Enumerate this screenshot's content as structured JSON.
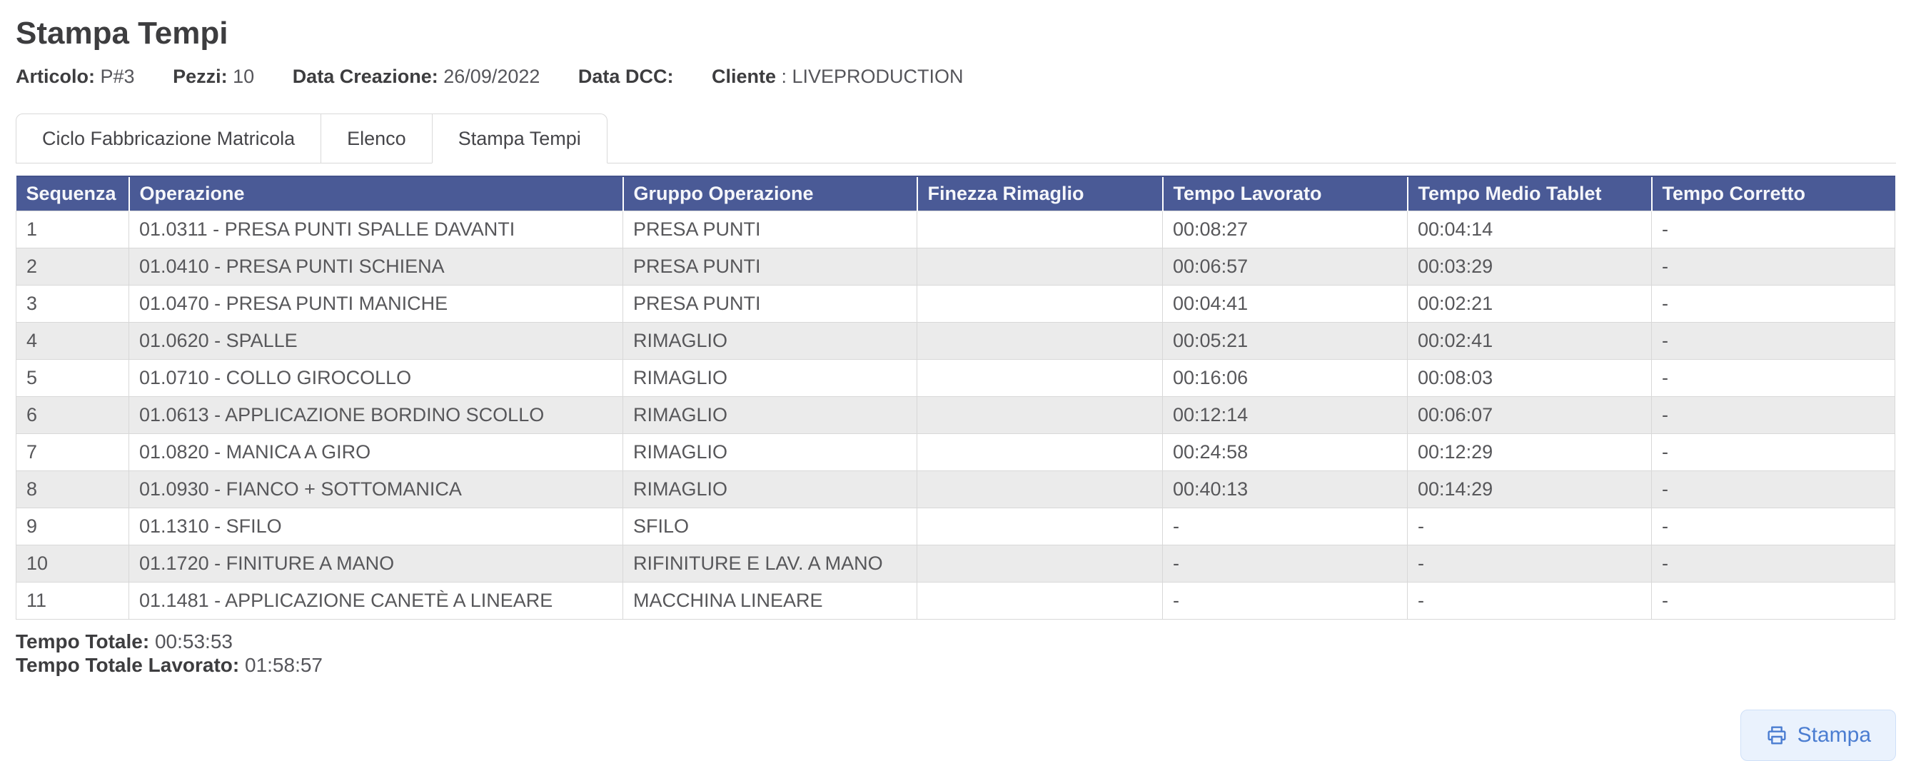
{
  "page": {
    "title": "Stampa Tempi"
  },
  "info": [
    {
      "label": "Articolo:",
      "value": "P#3"
    },
    {
      "label": "Pezzi:",
      "value": "10"
    },
    {
      "label": "Data Creazione:",
      "value": "26/09/2022"
    },
    {
      "label": "Data DCC:",
      "value": ""
    },
    {
      "label": "Cliente",
      "value": ": LIVEPRODUCTION"
    }
  ],
  "tabs": [
    {
      "label": "Ciclo Fabbricazione Matricola",
      "active": false
    },
    {
      "label": "Elenco",
      "active": false
    },
    {
      "label": "Stampa Tempi",
      "active": true
    }
  ],
  "table": {
    "columns": [
      "Sequenza",
      "Operazione",
      "Gruppo Operazione",
      "Finezza Rimaglio",
      "Tempo Lavorato",
      "Tempo Medio Tablet",
      "Tempo Corretto"
    ],
    "rows": [
      [
        "1",
        "01.0311 - PRESA PUNTI SPALLE DAVANTI",
        "PRESA PUNTI",
        "",
        "00:08:27",
        "00:04:14",
        "-"
      ],
      [
        "2",
        "01.0410 - PRESA PUNTI SCHIENA",
        "PRESA PUNTI",
        "",
        "00:06:57",
        "00:03:29",
        "-"
      ],
      [
        "3",
        "01.0470 - PRESA PUNTI MANICHE",
        "PRESA PUNTI",
        "",
        "00:04:41",
        "00:02:21",
        "-"
      ],
      [
        "4",
        "01.0620 - SPALLE",
        "RIMAGLIO",
        "",
        "00:05:21",
        "00:02:41",
        "-"
      ],
      [
        "5",
        "01.0710 - COLLO GIROCOLLO",
        "RIMAGLIO",
        "",
        "00:16:06",
        "00:08:03",
        "-"
      ],
      [
        "6",
        "01.0613 - APPLICAZIONE BORDINO SCOLLO",
        "RIMAGLIO",
        "",
        "00:12:14",
        "00:06:07",
        "-"
      ],
      [
        "7",
        "01.0820 - MANICA A GIRO",
        "RIMAGLIO",
        "",
        "00:24:58",
        "00:12:29",
        "-"
      ],
      [
        "8",
        "01.0930 - FIANCO + SOTTOMANICA",
        "RIMAGLIO",
        "",
        "00:40:13",
        "00:14:29",
        "-"
      ],
      [
        "9",
        "01.1310 - SFILO",
        "SFILO",
        "",
        "-",
        "-",
        "-"
      ],
      [
        "10",
        "01.1720 - FINITURE A MANO",
        "RIFINITURE E LAV. A MANO",
        "",
        "-",
        "-",
        "-"
      ],
      [
        "11",
        "01.1481 - APPLICAZIONE CANETÈ A LINEARE",
        "MACCHINA LINEARE",
        "",
        "-",
        "-",
        "-"
      ]
    ]
  },
  "totals": [
    {
      "label": "Tempo Totale:",
      "value": "00:53:53"
    },
    {
      "label": "Tempo Totale Lavorato:",
      "value": "01:58:57"
    }
  ],
  "print_button": {
    "label": "Stampa",
    "icon": "printer-icon"
  },
  "colors": {
    "table_header_bg": "#4a5a96",
    "row_alt_bg": "#ebebeb",
    "button_text": "#4b7dd1",
    "button_bg": "#eaf2fd",
    "button_border": "#cfe0f8"
  }
}
